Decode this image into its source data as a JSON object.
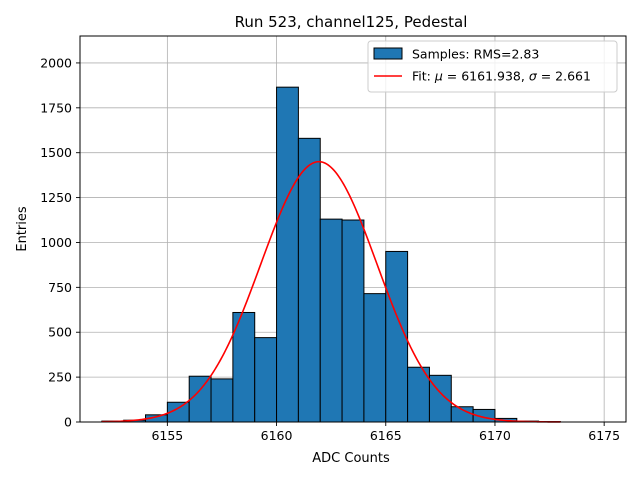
{
  "chart_data": {
    "type": "bar",
    "title": "Run 523, channel125, Pedestal",
    "xlabel": "ADC Counts",
    "ylabel": "Entries",
    "xlim": [
      6151.0,
      6176.0
    ],
    "ylim": [
      0,
      2150
    ],
    "xticks": [
      6155,
      6160,
      6165,
      6170,
      6175
    ],
    "yticks": [
      0,
      250,
      500,
      750,
      1000,
      1250,
      1500,
      1750,
      2000
    ],
    "grid": true,
    "legend_position": "top-right",
    "bar_color": "#1f77b4",
    "fit_color": "#ff0000",
    "bin_width": 1,
    "bins": [
      {
        "left": 6152,
        "value": 5
      },
      {
        "left": 6153,
        "value": 10
      },
      {
        "left": 6154,
        "value": 40
      },
      {
        "left": 6155,
        "value": 110
      },
      {
        "left": 6156,
        "value": 255
      },
      {
        "left": 6157,
        "value": 240
      },
      {
        "left": 6158,
        "value": 610
      },
      {
        "left": 6159,
        "value": 470
      },
      {
        "left": 6160,
        "value": 1865
      },
      {
        "left": 6161,
        "value": 1580
      },
      {
        "left": 6162,
        "value": 1130
      },
      {
        "left": 6163,
        "value": 1125
      },
      {
        "left": 6164,
        "value": 715
      },
      {
        "left": 6165,
        "value": 950
      },
      {
        "left": 6166,
        "value": 305
      },
      {
        "left": 6167,
        "value": 260
      },
      {
        "left": 6168,
        "value": 85
      },
      {
        "left": 6169,
        "value": 70
      },
      {
        "left": 6170,
        "value": 20
      },
      {
        "left": 6171,
        "value": 5
      },
      {
        "left": 6172,
        "value": 2
      }
    ],
    "fit": {
      "mu": 6161.938,
      "sigma": 2.661,
      "amplitude": 1450,
      "x_range": [
        6152,
        6173
      ]
    },
    "legend": [
      {
        "label": "Samples: RMS=2.83",
        "kind": "patch"
      },
      {
        "label_prefix": "Fit: ",
        "mu_symbol": "μ",
        "mu_text": " = 6161.938, ",
        "sigma_symbol": "σ",
        "sigma_text": " = 2.661",
        "kind": "line"
      }
    ]
  }
}
